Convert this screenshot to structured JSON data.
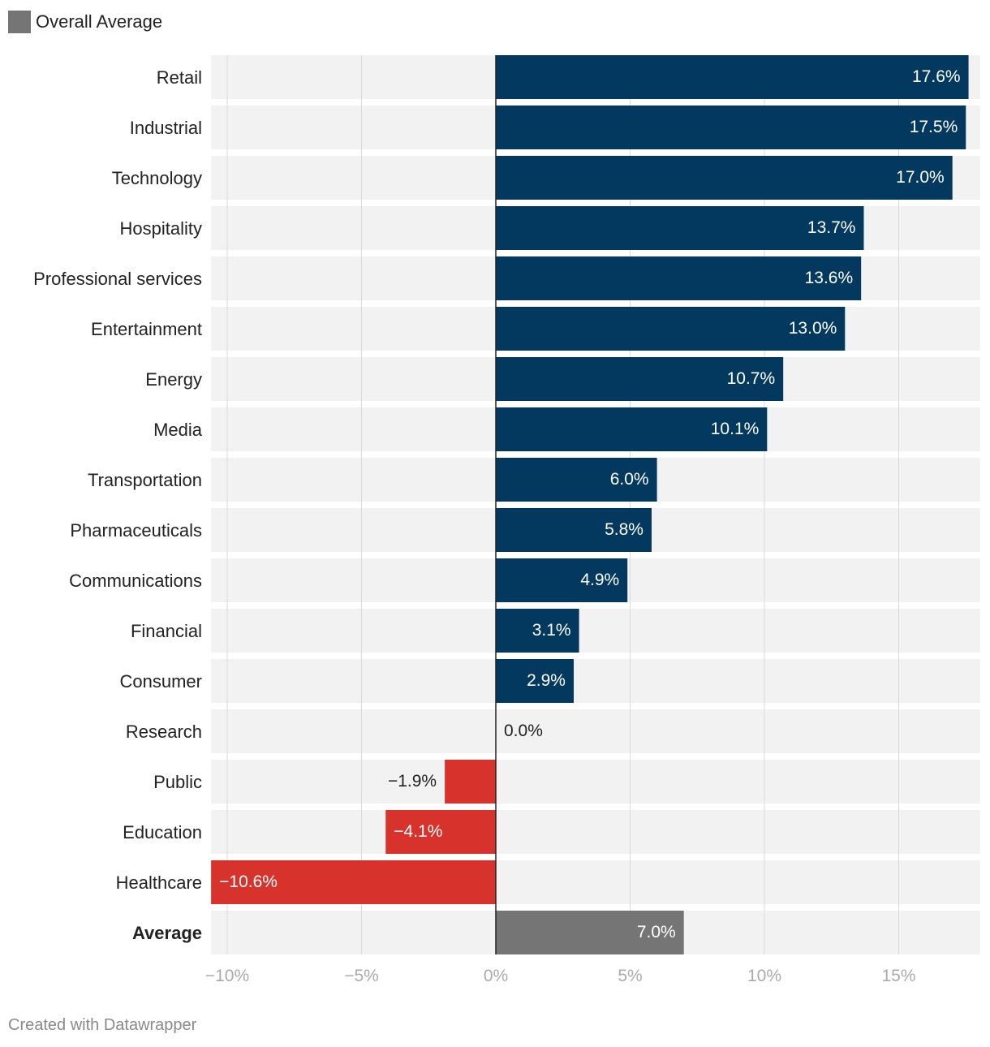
{
  "legend": {
    "label": "Overall Average",
    "color": "#757575"
  },
  "footer": {
    "credit": "Created with Datawrapper"
  },
  "colors": {
    "positive": "#03395e",
    "negative": "#d7322c",
    "average": "#757575",
    "row_bg": "#f2f2f2",
    "grid": "#d9d9d9",
    "axis": "#222222",
    "tick": "#aaaaaa"
  },
  "chart_data": {
    "type": "bar",
    "orientation": "horizontal",
    "title": "",
    "xlabel": "",
    "ylabel": "",
    "xlim": [
      -10.6,
      18
    ],
    "ticks": [
      {
        "value": -10,
        "label": "−10%"
      },
      {
        "value": -5,
        "label": "−5%"
      },
      {
        "value": 0,
        "label": "0%"
      },
      {
        "value": 5,
        "label": "5%"
      },
      {
        "value": 10,
        "label": "10%"
      },
      {
        "value": 15,
        "label": "15%"
      }
    ],
    "categories": [
      "Retail",
      "Industrial",
      "Technology",
      "Hospitality",
      "Professional services",
      "Entertainment",
      "Energy",
      "Media",
      "Transportation",
      "Pharmaceuticals",
      "Communications",
      "Financial",
      "Consumer",
      "Research",
      "Public",
      "Education",
      "Healthcare",
      "Average"
    ],
    "values": [
      17.6,
      17.5,
      17.0,
      13.7,
      13.6,
      13.0,
      10.7,
      10.1,
      6.0,
      5.8,
      4.9,
      3.1,
      2.9,
      0.0,
      -1.9,
      -4.1,
      -10.6,
      7.0
    ],
    "value_labels": [
      "17.6%",
      "17.5%",
      "17.0%",
      "13.7%",
      "13.6%",
      "13.0%",
      "10.7%",
      "10.1%",
      "6.0%",
      "5.8%",
      "4.9%",
      "3.1%",
      "2.9%",
      "0.0%",
      "−1.9%",
      "−4.1%",
      "−10.6%",
      "7.0%"
    ],
    "highlight_category": "Average",
    "legend": "top-left"
  }
}
